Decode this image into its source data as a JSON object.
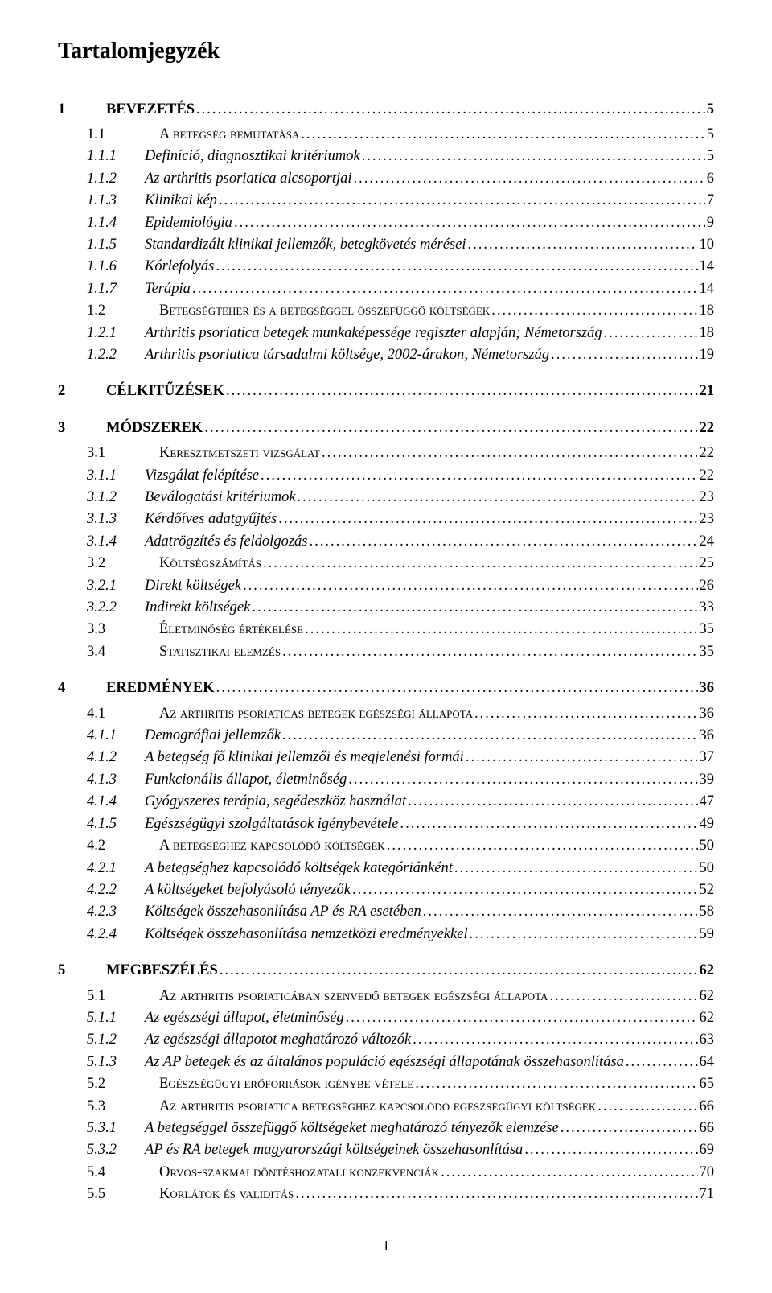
{
  "title": "Tartalomjegyzék",
  "footer_page": "1",
  "leader_char": ".",
  "indent": {
    "l1": 0,
    "l2": 36,
    "l3": 36,
    "num_gap_l1": 30,
    "num_gap_l2": 42,
    "num_gap_l3": 12
  },
  "styles": {
    "l1": "bold",
    "l2": "smallcaps",
    "l3": "italic"
  },
  "entries": [
    {
      "level": 1,
      "num": "1",
      "text": "BEVEZETÉS",
      "page": "5"
    },
    {
      "level": 2,
      "num": "1.1",
      "text": "A betegség bemutatása",
      "page": "5"
    },
    {
      "level": 3,
      "num": "1.1.1",
      "text": "Definíció, diagnosztikai kritériumok",
      "page": "5"
    },
    {
      "level": 3,
      "num": "1.1.2",
      "text": "Az arthritis psoriatica alcsoportjai",
      "page": "6"
    },
    {
      "level": 3,
      "num": "1.1.3",
      "text": "Klinikai kép",
      "page": "7"
    },
    {
      "level": 3,
      "num": "1.1.4",
      "text": "Epidemiológia",
      "page": "9"
    },
    {
      "level": 3,
      "num": "1.1.5",
      "text": "Standardizált klinikai jellemzők, betegkövetés mérései",
      "page": "10"
    },
    {
      "level": 3,
      "num": "1.1.6",
      "text": "Kórlefolyás",
      "page": "14"
    },
    {
      "level": 3,
      "num": "1.1.7",
      "text": "Terápia",
      "page": "14"
    },
    {
      "level": 2,
      "num": "1.2",
      "text": "Betegségteher és a betegséggel összefüggő költségek",
      "page": "18"
    },
    {
      "level": 3,
      "num": "1.2.1",
      "text": "Arthritis psoriatica betegek munkaképessége regiszter alapján; Németország",
      "page": "18"
    },
    {
      "level": 3,
      "num": "1.2.2",
      "text": "Arthritis psoriatica társadalmi költsége, 2002-árakon, Németország",
      "page": "19"
    },
    {
      "level": 1,
      "num": "2",
      "text": "CÉLKITŰZÉSEK",
      "page": "21"
    },
    {
      "level": 1,
      "num": "3",
      "text": "MÓDSZEREK",
      "page": "22"
    },
    {
      "level": 2,
      "num": "3.1",
      "text": "Keresztmetszeti vizsgálat",
      "page": "22"
    },
    {
      "level": 3,
      "num": "3.1.1",
      "text": "Vizsgálat felépítése",
      "page": "22"
    },
    {
      "level": 3,
      "num": "3.1.2",
      "text": "Beválogatási kritériumok",
      "page": "23"
    },
    {
      "level": 3,
      "num": "3.1.3",
      "text": "Kérdőíves adatgyűjtés",
      "page": "23"
    },
    {
      "level": 3,
      "num": "3.1.4",
      "text": "Adatrögzítés és feldolgozás",
      "page": "24"
    },
    {
      "level": 2,
      "num": "3.2",
      "text": "Költségszámítás",
      "page": "25"
    },
    {
      "level": 3,
      "num": "3.2.1",
      "text": "Direkt költségek",
      "page": "26"
    },
    {
      "level": 3,
      "num": "3.2.2",
      "text": "Indirekt költségek",
      "page": "33"
    },
    {
      "level": 2,
      "num": "3.3",
      "text": "Életminőség értékelése",
      "page": "35"
    },
    {
      "level": 2,
      "num": "3.4",
      "text": "Statisztikai elemzés",
      "page": "35"
    },
    {
      "level": 1,
      "num": "4",
      "text": "EREDMÉNYEK",
      "page": "36"
    },
    {
      "level": 2,
      "num": "4.1",
      "text": "Az arthritis psoriaticas betegek egészségi állapota",
      "page": "36"
    },
    {
      "level": 3,
      "num": "4.1.1",
      "text": "Demográfiai jellemzők",
      "page": "36"
    },
    {
      "level": 3,
      "num": "4.1.2",
      "text": "A betegség fő klinikai jellemzői és megjelenési formái",
      "page": "37"
    },
    {
      "level": 3,
      "num": "4.1.3",
      "text": "Funkcionális állapot, életminőség",
      "page": "39"
    },
    {
      "level": 3,
      "num": "4.1.4",
      "text": "Gyógyszeres terápia, segédeszköz használat",
      "page": "47"
    },
    {
      "level": 3,
      "num": "4.1.5",
      "text": "Egészségügyi szolgáltatások igénybevétele",
      "page": "49"
    },
    {
      "level": 2,
      "num": "4.2",
      "text": "A betegséghez kapcsolódó költségek",
      "page": "50"
    },
    {
      "level": 3,
      "num": "4.2.1",
      "text": "A betegséghez kapcsolódó költségek kategóriánként",
      "page": "50"
    },
    {
      "level": 3,
      "num": "4.2.2",
      "text": "A költségeket befolyásoló tényezők",
      "page": "52"
    },
    {
      "level": 3,
      "num": "4.2.3",
      "text": "Költségek összehasonlítása AP és RA esetében",
      "page": "58"
    },
    {
      "level": 3,
      "num": "4.2.4",
      "text": "Költségek összehasonlítása nemzetközi eredményekkel",
      "page": "59"
    },
    {
      "level": 1,
      "num": "5",
      "text": "MEGBESZÉLÉS",
      "page": "62"
    },
    {
      "level": 2,
      "num": "5.1",
      "text": "Az arthritis psoriaticában szenvedő betegek egészségi állapota",
      "page": "62"
    },
    {
      "level": 3,
      "num": "5.1.1",
      "text": "Az egészségi állapot, életminőség",
      "page": "62"
    },
    {
      "level": 3,
      "num": "5.1.2",
      "text": "Az egészségi állapotot meghatározó változók",
      "page": "63"
    },
    {
      "level": 3,
      "num": "5.1.3",
      "text": "Az AP betegek és az általános populáció egészségi állapotának összehasonlítása",
      "page": "64"
    },
    {
      "level": 2,
      "num": "5.2",
      "text": "Egészségügyi erőforrások igénybe vétele",
      "page": "65"
    },
    {
      "level": 2,
      "num": "5.3",
      "text": "Az arthritis psoriatica betegséghez kapcsolódó egészségügyi költségek",
      "page": "66"
    },
    {
      "level": 3,
      "num": "5.3.1",
      "text": "A betegséggel összefüggő költségeket meghatározó tényezők elemzése",
      "page": "66"
    },
    {
      "level": 3,
      "num": "5.3.2",
      "text": "AP és RA betegek magyarországi költségeinek összehasonlítása",
      "page": "69"
    },
    {
      "level": 2,
      "num": "5.4",
      "text": "Orvos-szakmai döntéshozatali konzekvenciák",
      "page": "70"
    },
    {
      "level": 2,
      "num": "5.5",
      "text": "Korlátok és validitás",
      "page": "71"
    }
  ]
}
